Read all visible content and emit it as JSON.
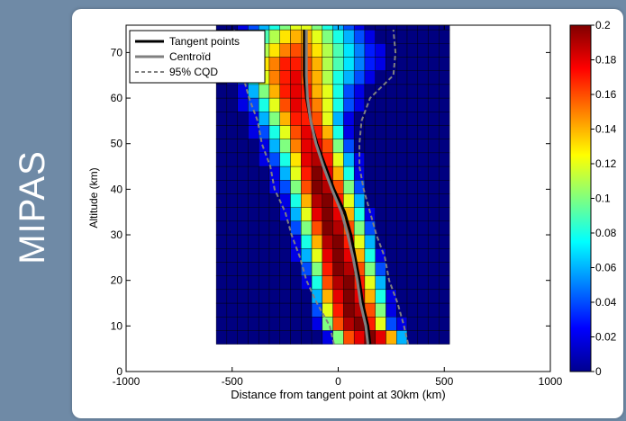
{
  "side_label": "MIPAS",
  "chart_data": {
    "type": "heatmap",
    "title": "",
    "xlabel": "Distance from tangent point at 30km (km)",
    "ylabel": "Altitude (km)",
    "xlim": [
      -1000,
      1000
    ],
    "ylim": [
      0,
      76
    ],
    "x_ticks": [
      "-1000",
      "-500",
      "0",
      "500",
      "1000"
    ],
    "y_ticks": [
      "0",
      "10",
      "20",
      "30",
      "40",
      "50",
      "60",
      "70"
    ],
    "grid": false,
    "legend_position": "top-left",
    "cells": {
      "x_start": -575,
      "x_step": 50,
      "nx": 22,
      "y_start": 6,
      "y_step": 3,
      "ny": 24,
      "value_range_note": "",
      "rows_bottom_to_top": [
        [
          0,
          0,
          0,
          0,
          0,
          0,
          0,
          0,
          0,
          0,
          0.02,
          0.1,
          0.16,
          0.18,
          0.2,
          0.18,
          0.14,
          0.06,
          0,
          0,
          0,
          0
        ],
        [
          0,
          0,
          0,
          0,
          0,
          0,
          0,
          0,
          0,
          0.02,
          0.1,
          0.16,
          0.19,
          0.2,
          0.17,
          0.12,
          0.04,
          0.02,
          0,
          0,
          0,
          0
        ],
        [
          0,
          0,
          0,
          0,
          0,
          0,
          0,
          0,
          0,
          0.04,
          0.12,
          0.17,
          0.2,
          0.19,
          0.16,
          0.1,
          0.02,
          0,
          0,
          0,
          0,
          0
        ],
        [
          0,
          0,
          0,
          0,
          0,
          0,
          0,
          0,
          0,
          0.06,
          0.14,
          0.18,
          0.2,
          0.18,
          0.14,
          0.08,
          0.02,
          0,
          0,
          0,
          0,
          0
        ],
        [
          0,
          0,
          0,
          0,
          0,
          0,
          0,
          0,
          0.02,
          0.08,
          0.16,
          0.19,
          0.2,
          0.17,
          0.12,
          0.06,
          0,
          0,
          0,
          0,
          0,
          0
        ],
        [
          0,
          0,
          0,
          0,
          0,
          0,
          0,
          0,
          0.04,
          0.1,
          0.17,
          0.2,
          0.19,
          0.16,
          0.1,
          0.04,
          0,
          0,
          0,
          0,
          0,
          0
        ],
        [
          0,
          0,
          0,
          0,
          0,
          0,
          0,
          0.02,
          0.06,
          0.12,
          0.18,
          0.2,
          0.18,
          0.14,
          0.08,
          0.02,
          0,
          0,
          0,
          0,
          0,
          0
        ],
        [
          0,
          0,
          0,
          0,
          0,
          0,
          0,
          0.02,
          0.08,
          0.14,
          0.19,
          0.2,
          0.17,
          0.12,
          0.06,
          0,
          0,
          0,
          0,
          0,
          0,
          0
        ],
        [
          0,
          0,
          0,
          0,
          0,
          0,
          0,
          0.04,
          0.1,
          0.16,
          0.2,
          0.19,
          0.16,
          0.1,
          0.04,
          0,
          0,
          0,
          0,
          0,
          0,
          0
        ],
        [
          0,
          0,
          0,
          0,
          0,
          0,
          0.02,
          0.06,
          0.12,
          0.18,
          0.2,
          0.18,
          0.14,
          0.08,
          0.02,
          0,
          0,
          0,
          0,
          0,
          0,
          0
        ],
        [
          0,
          0,
          0,
          0,
          0,
          0,
          0.02,
          0.08,
          0.14,
          0.19,
          0.2,
          0.17,
          0.12,
          0.06,
          0,
          0,
          0,
          0,
          0,
          0,
          0,
          0
        ],
        [
          0,
          0,
          0,
          0,
          0,
          0.02,
          0.04,
          0.1,
          0.16,
          0.2,
          0.19,
          0.16,
          0.1,
          0.04,
          0,
          0,
          0,
          0,
          0,
          0,
          0,
          0
        ],
        [
          0,
          0,
          0,
          0,
          0,
          0.02,
          0.06,
          0.12,
          0.17,
          0.2,
          0.18,
          0.14,
          0.08,
          0.02,
          0,
          0,
          0,
          0,
          0,
          0,
          0,
          0
        ],
        [
          0,
          0,
          0,
          0,
          0.02,
          0.04,
          0.08,
          0.13,
          0.18,
          0.19,
          0.17,
          0.12,
          0.06,
          0.02,
          0,
          0,
          0,
          0,
          0,
          0,
          0,
          0
        ],
        [
          0,
          0,
          0,
          0,
          0.02,
          0.06,
          0.1,
          0.15,
          0.18,
          0.18,
          0.16,
          0.1,
          0.04,
          0,
          0,
          0,
          0,
          0,
          0,
          0,
          0,
          0
        ],
        [
          0,
          0,
          0,
          0.02,
          0.04,
          0.08,
          0.12,
          0.16,
          0.18,
          0.17,
          0.14,
          0.08,
          0.02,
          0,
          0,
          0,
          0,
          0,
          0,
          0,
          0,
          0
        ],
        [
          0,
          0,
          0,
          0.02,
          0.06,
          0.1,
          0.14,
          0.17,
          0.17,
          0.16,
          0.12,
          0.06,
          0.02,
          0,
          0,
          0,
          0,
          0,
          0,
          0,
          0,
          0
        ],
        [
          0,
          0,
          0.02,
          0.04,
          0.08,
          0.12,
          0.16,
          0.18,
          0.17,
          0.15,
          0.12,
          0.08,
          0.04,
          0.02,
          0,
          0,
          0,
          0,
          0,
          0,
          0,
          0
        ],
        [
          0,
          0,
          0.02,
          0.06,
          0.1,
          0.14,
          0.17,
          0.18,
          0.17,
          0.14,
          0.12,
          0.08,
          0.04,
          0.02,
          0,
          0,
          0,
          0,
          0,
          0,
          0,
          0
        ],
        [
          0,
          0.02,
          0.04,
          0.08,
          0.12,
          0.15,
          0.17,
          0.18,
          0.16,
          0.14,
          0.11,
          0.08,
          0.06,
          0.04,
          0.02,
          0,
          0,
          0,
          0,
          0,
          0,
          0
        ],
        [
          0,
          0.02,
          0.06,
          0.1,
          0.13,
          0.15,
          0.17,
          0.17,
          0.16,
          0.14,
          0.11,
          0.09,
          0.07,
          0.05,
          0.03,
          0.02,
          0,
          0,
          0,
          0,
          0,
          0
        ],
        [
          0,
          0.02,
          0.04,
          0.08,
          0.11,
          0.13,
          0.15,
          0.16,
          0.15,
          0.13,
          0.11,
          0.09,
          0.07,
          0.05,
          0.03,
          0.02,
          0,
          0,
          0,
          0,
          0,
          0
        ],
        [
          0,
          0,
          0.02,
          0.06,
          0.09,
          0.11,
          0.13,
          0.14,
          0.14,
          0.12,
          0.1,
          0.08,
          0.06,
          0.04,
          0.02,
          0,
          0,
          0,
          0,
          0,
          0,
          0
        ],
        [
          0,
          0,
          0.02,
          0.04,
          0.06,
          0.08,
          0.1,
          0.12,
          0.12,
          0.1,
          0.08,
          0.06,
          0.04,
          0.02,
          0,
          0,
          0,
          0,
          0,
          0,
          0,
          0
        ]
      ]
    },
    "series": [
      {
        "name": "Tangent points",
        "color": "#000000",
        "style": "solid",
        "x": [
          150,
          140,
          115,
          100,
          80,
          60,
          30,
          -20,
          -60,
          -100,
          -130,
          -150,
          -160,
          -160,
          -160
        ],
        "y": [
          6,
          10,
          15,
          20,
          25,
          30,
          35,
          40,
          45,
          50,
          55,
          60,
          65,
          70,
          75
        ]
      },
      {
        "name": "Centroïd",
        "color": "#808080",
        "style": "solid",
        "x": [
          140,
          130,
          105,
          90,
          70,
          45,
          15,
          -30,
          -70,
          -105,
          -130,
          -145,
          -150,
          -150,
          -150
        ],
        "y": [
          6,
          10,
          15,
          20,
          25,
          30,
          35,
          40,
          45,
          50,
          55,
          60,
          65,
          70,
          75
        ]
      },
      {
        "name": "95% CQD",
        "color": "#808080",
        "style": "dashed",
        "x": [
          -20,
          -40,
          -100,
          -150,
          -180,
          -220,
          -250,
          -300,
          -320,
          -360,
          -380,
          -420,
          -450,
          -480,
          -490
        ],
        "y": [
          6,
          10,
          15,
          20,
          25,
          30,
          35,
          40,
          45,
          50,
          55,
          60,
          65,
          70,
          75
        ]
      },
      {
        "name": "",
        "color": "#808080",
        "style": "dashed",
        "x": [
          330,
          310,
          280,
          240,
          220,
          180,
          150,
          120,
          100,
          100,
          110,
          150,
          260,
          270,
          260
        ],
        "y": [
          6,
          10,
          15,
          20,
          25,
          30,
          35,
          40,
          45,
          50,
          55,
          60,
          65,
          70,
          75
        ]
      }
    ],
    "colorbar": {
      "min": 0,
      "max": 0.2,
      "tick_labels": [
        "0",
        "0.02",
        "0.04",
        "0.06",
        "0.08",
        "0.1",
        "0.12",
        "0.14",
        "0.16",
        "0.18",
        "0.2"
      ]
    }
  }
}
